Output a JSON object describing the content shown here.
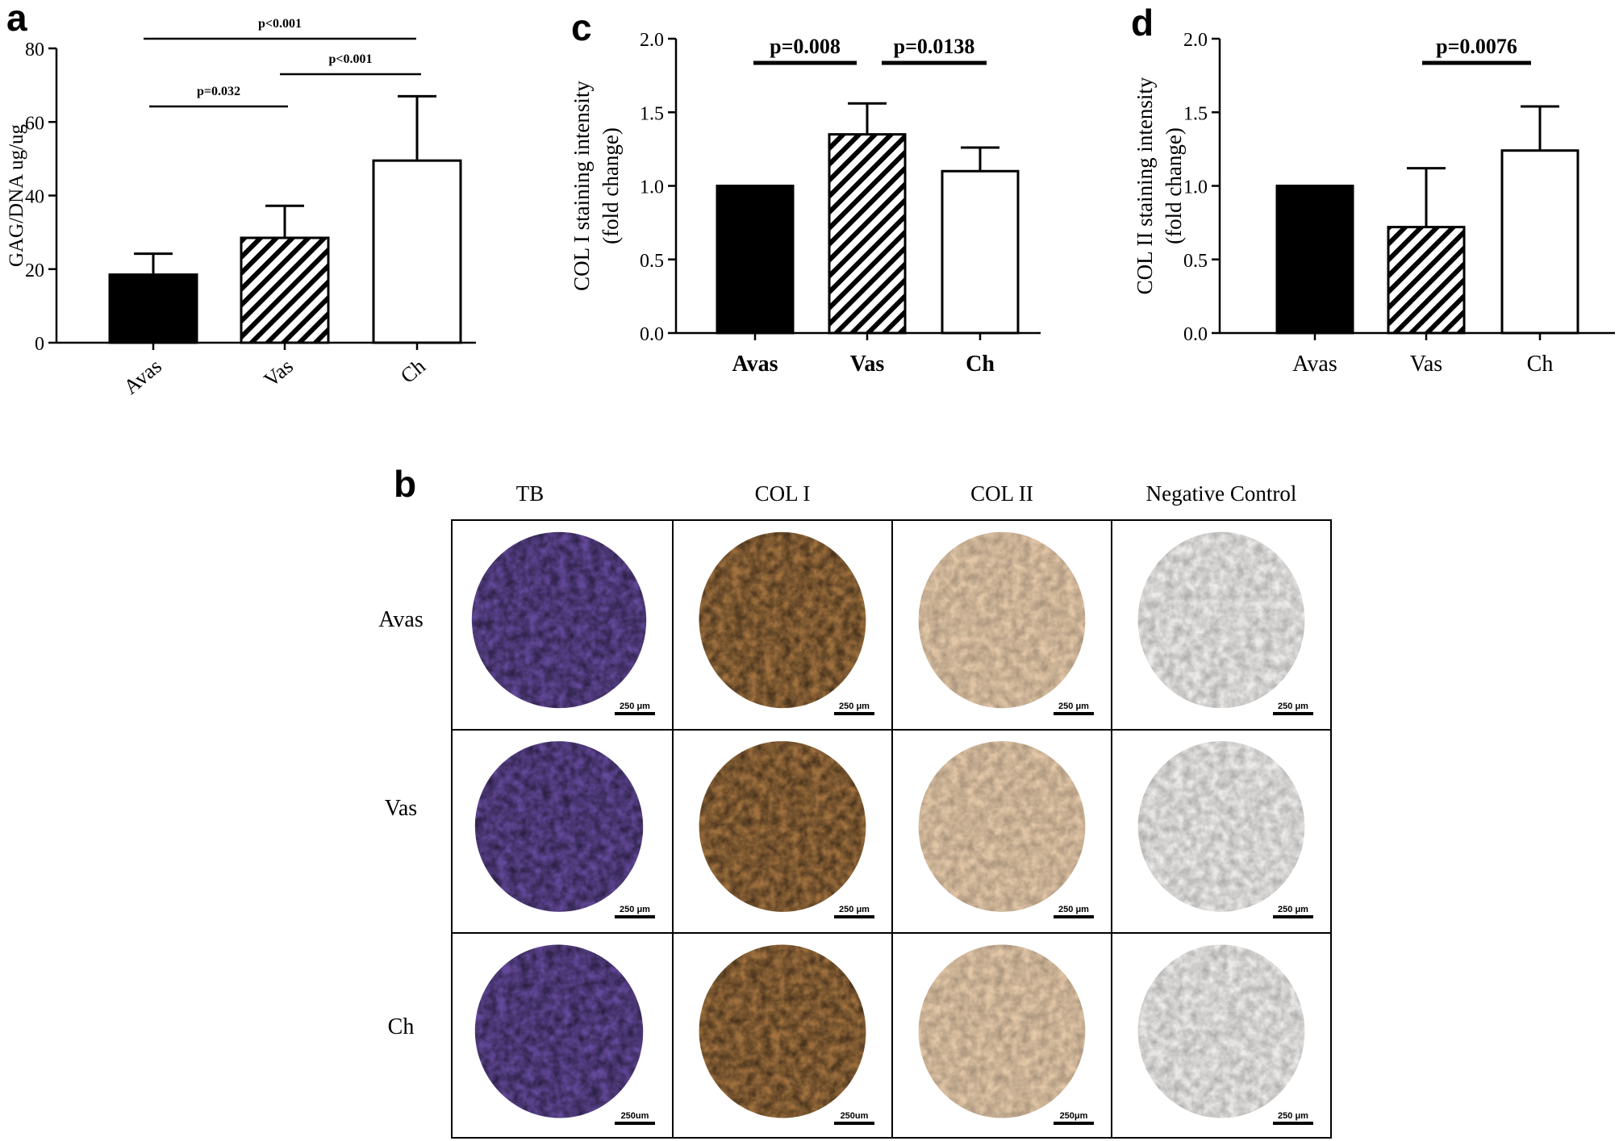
{
  "panels": {
    "a": "a",
    "b": "b",
    "c": "c",
    "d": "d"
  },
  "colors": {
    "ink": "#000000",
    "tb_stain": "#5b3f95",
    "col1_stain": "#9c6a35",
    "col2_stain": "#d9b48a",
    "negative_stain": "#e6e3df"
  },
  "chart_data": [
    {
      "panel": "a",
      "type": "bar",
      "categories": [
        "Avas",
        "Vas",
        "Ch"
      ],
      "values": [
        18.5,
        28.5,
        49.5
      ],
      "errors": [
        5.7,
        8.7,
        17.5
      ],
      "fills": [
        "solid",
        "hatched",
        "white"
      ],
      "ylabel": "GAG/DNA ug/ug",
      "ylim": [
        0,
        80
      ],
      "yticks": [
        0,
        20,
        40,
        60,
        80
      ],
      "significance": [
        {
          "from": 0,
          "to": 1,
          "label": "p=0.032"
        },
        {
          "from": 1,
          "to": 2,
          "label": "p<0.001"
        },
        {
          "from": 0,
          "to": 2,
          "label": "p<0.001"
        }
      ]
    },
    {
      "panel": "c",
      "type": "bar",
      "categories": [
        "Avas",
        "Vas",
        "Ch"
      ],
      "values": [
        1.0,
        1.35,
        1.1
      ],
      "errors": [
        0,
        0.21,
        0.16
      ],
      "fills": [
        "solid",
        "hatched",
        "white"
      ],
      "ylabel_lines": [
        "COL I staining intensity",
        "(fold change)"
      ],
      "ylim": [
        0,
        2
      ],
      "yticks": [
        "0.0",
        "0.5",
        "1.0",
        "1.5",
        "2.0"
      ],
      "significance": [
        {
          "from": 0,
          "to": 1,
          "label": "p=0.008"
        },
        {
          "from": 1,
          "to": 2,
          "label": "p=0.0138"
        }
      ]
    },
    {
      "panel": "d",
      "type": "bar",
      "categories": [
        "Avas",
        "Vas",
        "Ch"
      ],
      "values": [
        1.0,
        0.72,
        1.24
      ],
      "errors": [
        0,
        0.4,
        0.3
      ],
      "fills": [
        "solid",
        "hatched",
        "white"
      ],
      "ylabel_lines": [
        "COL II staining intensity",
        "(fold change)"
      ],
      "ylim": [
        0,
        2
      ],
      "yticks": [
        "0.0",
        "0.5",
        "1.0",
        "1.5",
        "2.0"
      ],
      "significance": [
        {
          "from": 1,
          "to": 2,
          "label": "p=0.0076"
        }
      ]
    }
  ],
  "histology": {
    "columns": [
      "TB",
      "COL I",
      "COL II",
      "Negative Control"
    ],
    "rows": [
      "Avas",
      "Vas",
      "Ch"
    ],
    "scale_bars": [
      [
        "250 μm",
        "250 μm",
        "250 μm",
        "250 μm"
      ],
      [
        "250 μm",
        "250 μm",
        "250 μm",
        "250 μm"
      ],
      [
        "250um",
        "250um",
        "250μm",
        "250 μm"
      ]
    ]
  }
}
